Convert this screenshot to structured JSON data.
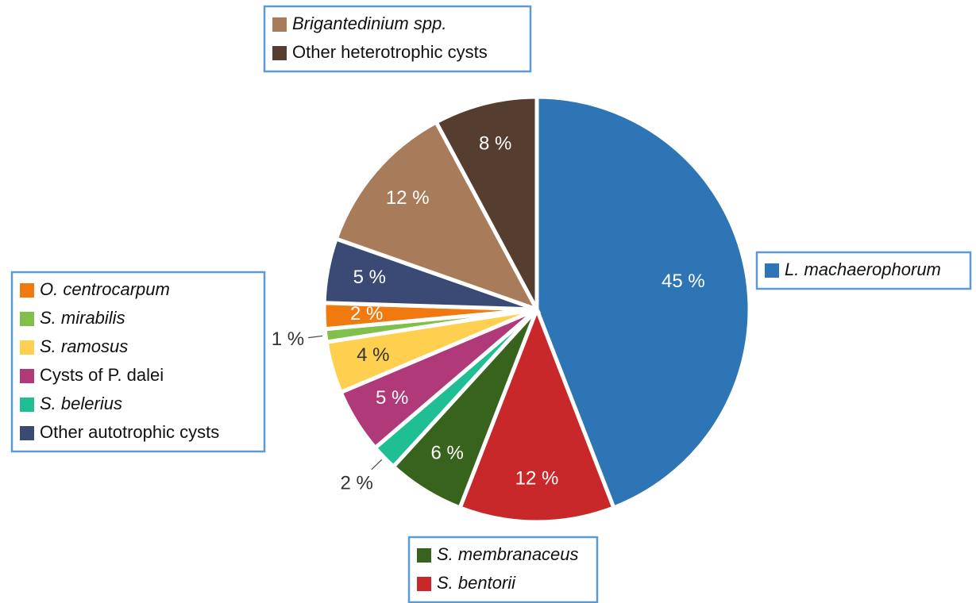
{
  "chart_data": {
    "type": "pie",
    "categories": [
      "L. machaerophorum",
      "S. bentorii",
      "S. membranaceus",
      "S. belerius",
      "Cysts of P. dalei",
      "S. ramosus",
      "S. mirabilis",
      "O. centrocarpum",
      "Other autotrophic cysts",
      "Brigantedinium spp.",
      "Other heterotrophic cysts"
    ],
    "values": [
      45,
      12,
      6,
      2,
      5,
      4,
      1,
      2,
      5,
      12,
      8
    ],
    "value_labels": [
      "45 %",
      "12 %",
      "6 %",
      "2 %",
      "5 %",
      "4 %",
      "1 %",
      "2 %",
      "5 %",
      "12 %",
      "8 %"
    ],
    "colors": [
      "#2e75b6",
      "#c9282a",
      "#38631c",
      "#1fbf93",
      "#b0397a",
      "#ffd04f",
      "#7fbf4a",
      "#f07a10",
      "#3b4a74",
      "#a87c5a",
      "#553d30"
    ]
  }
}
